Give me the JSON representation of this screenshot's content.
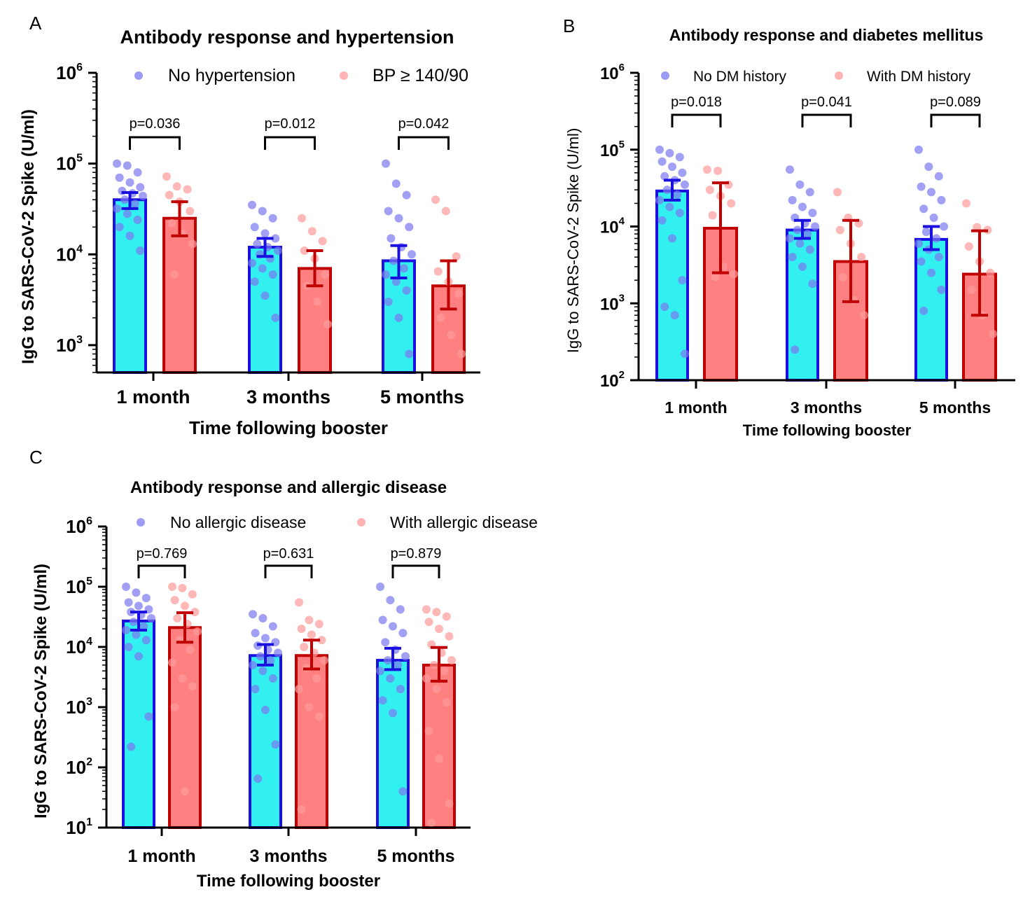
{
  "palette": {
    "group1_fill": "#33f0f0",
    "group1_stroke": "#1a10e0",
    "group1_dot": "#7a78f0",
    "group1_dot_b": "#8a88f2",
    "group2_fill": "#ff8080",
    "group2_stroke": "#c00000",
    "group2_dot": "#ff9a9a",
    "axis": "#000000"
  },
  "chart_data": [
    {
      "id": "A",
      "panel_letter": "A",
      "type": "bar",
      "scale": "log",
      "title": "Antibody response and hypertension",
      "xlabel": "Time following booster",
      "ylabel": "IgG to SARS-CoV-2 Spike (U/ml)",
      "ylim": [
        500,
        1000000
      ],
      "yticks": [
        {
          "base": "10",
          "exp": "6",
          "value": 1000000
        },
        {
          "base": "10",
          "exp": "5",
          "value": 100000
        },
        {
          "base": "10",
          "exp": "4",
          "value": 10000
        },
        {
          "base": "10",
          "exp": "3",
          "value": 1000
        }
      ],
      "categories": [
        "1 month",
        "3 months",
        "5 months"
      ],
      "legend": [
        "No hypertension",
        "BP ≥ 140/90"
      ],
      "pvalues": [
        "p=0.036",
        "p=0.012",
        "p=0.042"
      ],
      "series": [
        {
          "name": "No hypertension",
          "values": [
            40000,
            12000,
            8500
          ],
          "err_low": [
            32000,
            9500,
            5500
          ],
          "err_high": [
            48000,
            15000,
            12500
          ],
          "points": [
            [
              100000,
              95000,
              80000,
              70000,
              62000,
              55000,
              50000,
              47000,
              44000,
              40000,
              36000,
              32000,
              28000,
              24000,
              20000,
              16000,
              11000
            ],
            [
              35000,
              30000,
              25000,
              20000,
              17000,
              15000,
              13000,
              12000,
              11000,
              10000,
              9000,
              8000,
              7000,
              6000,
              5000,
              3500,
              2000
            ],
            [
              100000,
              60000,
              45000,
              30000,
              25000,
              20000,
              15000,
              12000,
              10000,
              8500,
              7000,
              6000,
              5000,
              4000,
              3000,
              2000,
              800
            ]
          ]
        },
        {
          "name": "BP ≥ 140/90",
          "values": [
            25000,
            7000,
            4500
          ],
          "err_low": [
            16000,
            4500,
            2500
          ],
          "err_high": [
            38000,
            11000,
            8500
          ],
          "points": [
            [
              72000,
              56000,
              52000,
              45000,
              38000,
              30000,
              22000,
              17000,
              13000,
              6000
            ],
            [
              25000,
              18000,
              14000,
              11000,
              9000,
              6000,
              4500,
              3000,
              1700
            ],
            [
              40000,
              30000,
              9500,
              6500,
              5000,
              3700,
              2000,
              1300,
              800
            ]
          ]
        }
      ]
    },
    {
      "id": "B",
      "panel_letter": "B",
      "type": "bar",
      "scale": "log",
      "title": "Antibody response and diabetes mellitus",
      "xlabel": "Time following booster",
      "ylabel": "IgG to SARS-CoV-2 Spike (U/ml)",
      "ylim": [
        100,
        1000000
      ],
      "yticks": [
        {
          "base": "10",
          "exp": "6",
          "value": 1000000
        },
        {
          "base": "10",
          "exp": "5",
          "value": 100000
        },
        {
          "base": "10",
          "exp": "4",
          "value": 10000
        },
        {
          "base": "10",
          "exp": "3",
          "value": 1000
        },
        {
          "base": "10",
          "exp": "2",
          "value": 100
        }
      ],
      "categories": [
        "1 month",
        "3 months",
        "5 months"
      ],
      "legend": [
        "No DM history",
        "With DM history"
      ],
      "pvalues": [
        "p=0.018",
        "p=0.041",
        "p=0.089"
      ],
      "series": [
        {
          "name": "No DM history",
          "values": [
            29000,
            9000,
            6800
          ],
          "err_low": [
            22000,
            7000,
            5000
          ],
          "err_high": [
            40000,
            12000,
            10000
          ],
          "points": [
            [
              100000,
              90000,
              80000,
              70000,
              60000,
              50000,
              45000,
              40000,
              35000,
              30000,
              26000,
              22000,
              18000,
              15000,
              12000,
              7000,
              2000,
              900,
              700,
              220
            ],
            [
              55000,
              35000,
              28000,
              22000,
              18000,
              15000,
              13000,
              11000,
              10000,
              9000,
              8000,
              7000,
              6000,
              5000,
              4000,
              3000,
              1800,
              250
            ],
            [
              100000,
              60000,
              45000,
              33000,
              28000,
              22000,
              17000,
              13000,
              10000,
              8500,
              7000,
              6000,
              5000,
              4000,
              3500,
              2500,
              1500,
              800
            ]
          ]
        },
        {
          "name": "With DM history",
          "values": [
            9500,
            3500,
            2400
          ],
          "err_low": [
            2500,
            1050,
            700
          ],
          "err_high": [
            37000,
            12000,
            8800
          ],
          "points": [
            [
              55000,
              53000,
              35000,
              30000,
              25000,
              20000,
              14000,
              3000,
              2400,
              2200
            ],
            [
              28000,
              13000,
              11000,
              9000,
              6000,
              4000,
              2200,
              1100,
              700
            ],
            [
              20000,
              9800,
              9000,
              5500,
              3500,
              2500,
              1500,
              700,
              400
            ]
          ]
        }
      ]
    },
    {
      "id": "C",
      "panel_letter": "C",
      "type": "bar",
      "scale": "log",
      "title": "Antibody response and allergic disease",
      "xlabel": "Time following booster",
      "ylabel": "IgG to SARS-CoV-2 Spike (U/ml)",
      "ylim": [
        10,
        1000000
      ],
      "yticks": [
        {
          "base": "10",
          "exp": "6",
          "value": 1000000
        },
        {
          "base": "10",
          "exp": "5",
          "value": 100000
        },
        {
          "base": "10",
          "exp": "4",
          "value": 10000
        },
        {
          "base": "10",
          "exp": "3",
          "value": 1000
        },
        {
          "base": "10",
          "exp": "2",
          "value": 100
        },
        {
          "base": "10",
          "exp": "1",
          "value": 10
        }
      ],
      "categories": [
        "1 month",
        "3 months",
        "5 months"
      ],
      "legend": [
        "No allergic disease",
        "With allergic disease"
      ],
      "pvalues": [
        "p=0.769",
        "p=0.631",
        "p=0.879"
      ],
      "series": [
        {
          "name": "No allergic disease",
          "values": [
            27000,
            7200,
            6000
          ],
          "err_low": [
            19000,
            5000,
            4200
          ],
          "err_high": [
            38000,
            11000,
            9500
          ],
          "points": [
            [
              100000,
              80000,
              65000,
              55000,
              48000,
              42000,
              38000,
              34000,
              30000,
              26000,
              22000,
              19000,
              16000,
              13000,
              10000,
              7000,
              700,
              220
            ],
            [
              35000,
              30000,
              22000,
              17000,
              14000,
              12000,
              10500,
              9000,
              8000,
              7000,
              6000,
              5000,
              4000,
              3000,
              2000,
              900,
              240,
              65
            ],
            [
              100000,
              60000,
              42000,
              28000,
              22000,
              17000,
              12000,
              9000,
              7000,
              6000,
              5000,
              4000,
              3000,
              2000,
              1300,
              800,
              40
            ]
          ]
        },
        {
          "name": "With allergic disease",
          "values": [
            21000,
            7200,
            5000
          ],
          "err_low": [
            12000,
            4300,
            2700
          ],
          "err_high": [
            37000,
            13000,
            9800
          ],
          "points": [
            [
              100000,
              95000,
              75000,
              60000,
              48000,
              38000,
              30000,
              24000,
              18000,
              13000,
              9000,
              5500,
              3000,
              2200,
              1000,
              40
            ],
            [
              55000,
              28000,
              24000,
              20000,
              16000,
              13000,
              10000,
              8000,
              6000,
              4500,
              3000,
              2000,
              1000,
              700,
              20
            ],
            [
              42000,
              38000,
              32000,
              26000,
              20000,
              15000,
              11000,
              8000,
              6000,
              5000,
              4000,
              3000,
              2000,
              1200,
              400,
              140,
              25,
              12
            ]
          ]
        }
      ]
    }
  ]
}
